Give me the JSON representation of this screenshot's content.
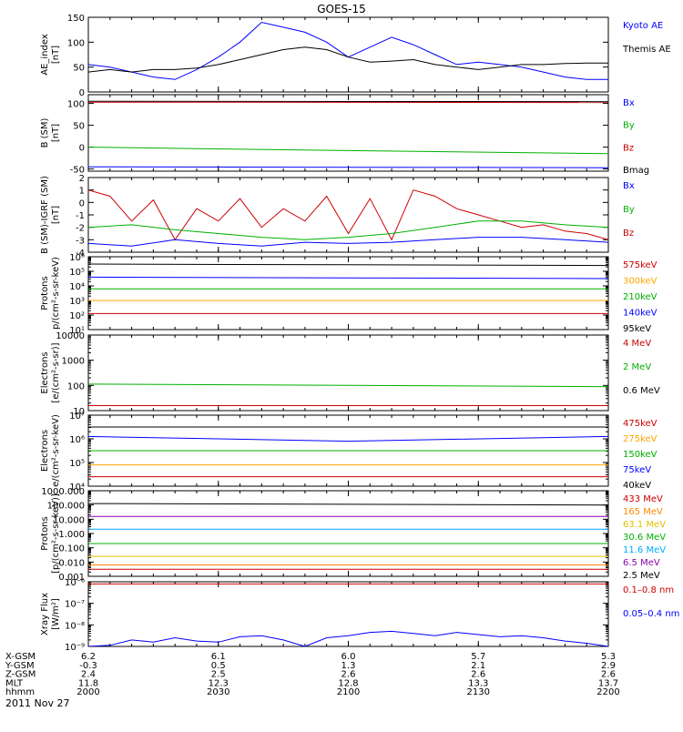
{
  "title": "GOES-15",
  "date": "2011 Nov 27",
  "x_axis": {
    "row_labels": [
      "X-GSM",
      "Y-GSM",
      "Z-GSM",
      "MLT",
      "hhmm"
    ],
    "columns": [
      {
        "time": 2000,
        "values": [
          "6.2",
          "-0.3",
          "2.4",
          "11.8",
          "2000"
        ]
      },
      {
        "time": 2030,
        "values": [
          "6.1",
          "0.5",
          "2.5",
          "12.3",
          "2030"
        ]
      },
      {
        "time": 2100,
        "values": [
          "6.0",
          "1.3",
          "2.6",
          "12.8",
          "2100"
        ]
      },
      {
        "time": 2130,
        "values": [
          "5.7",
          "2.1",
          "2.6",
          "13.3",
          "2130"
        ]
      },
      {
        "time": 2200,
        "values": [
          "5.3",
          "2.9",
          "2.6",
          "13.7",
          "2200"
        ]
      }
    ]
  },
  "chart_data": [
    {
      "type": "line",
      "ylabel": [
        "AE_index",
        "[nT]"
      ],
      "yscale": "linear",
      "ylim": [
        0,
        150
      ],
      "ticks": [
        {
          "v": 0,
          "l": "0"
        },
        {
          "v": 50,
          "l": "50"
        },
        {
          "v": 100,
          "l": "100"
        },
        {
          "v": 150,
          "l": "150"
        }
      ],
      "legend": [
        {
          "label": "Kyoto AE",
          "color": "#0000ff"
        },
        {
          "label": "Themis AE",
          "color": "#000000"
        }
      ],
      "series": [
        {
          "name": "Kyoto AE",
          "color": "#0000ff",
          "x": [
            2000,
            2005,
            2010,
            2015,
            2020,
            2025,
            2030,
            2035,
            2040,
            2045,
            2050,
            2055,
            2100,
            2105,
            2110,
            2115,
            2120,
            2125,
            2130,
            2135,
            2140,
            2145,
            2150,
            2155,
            2200
          ],
          "y": [
            55,
            50,
            40,
            30,
            25,
            45,
            70,
            100,
            140,
            130,
            120,
            100,
            70,
            90,
            110,
            95,
            75,
            55,
            60,
            55,
            50,
            40,
            30,
            25,
            25
          ]
        },
        {
          "name": "Themis AE",
          "color": "#000000",
          "x": [
            2000,
            2005,
            2010,
            2015,
            2020,
            2025,
            2030,
            2035,
            2040,
            2045,
            2050,
            2055,
            2100,
            2105,
            2110,
            2115,
            2120,
            2125,
            2130,
            2135,
            2140,
            2145,
            2150,
            2155,
            2200
          ],
          "y": [
            40,
            45,
            40,
            45,
            45,
            48,
            55,
            65,
            75,
            85,
            90,
            85,
            70,
            60,
            62,
            65,
            55,
            50,
            45,
            50,
            55,
            55,
            57,
            58,
            58
          ]
        }
      ]
    },
    {
      "type": "line",
      "ylabel": [
        "B (SM)",
        "[nT]"
      ],
      "yscale": "linear",
      "ylim": [
        -55,
        120
      ],
      "ticks": [
        {
          "v": -50,
          "l": "-50"
        },
        {
          "v": 0,
          "l": "0"
        },
        {
          "v": 50,
          "l": "50"
        },
        {
          "v": 100,
          "l": "100"
        }
      ],
      "legend": [
        {
          "label": "Bx",
          "color": "#0000ff"
        },
        {
          "label": "By",
          "color": "#00b000"
        },
        {
          "label": "Bz",
          "color": "#cc0000"
        },
        {
          "label": "Bmag",
          "color": "#000000"
        }
      ],
      "series": [
        {
          "name": "Bmag",
          "color": "#000000",
          "x": [
            2000,
            2200
          ],
          "y": [
            105,
            104
          ]
        },
        {
          "name": "Bz",
          "color": "#cc0000",
          "x": [
            2000,
            2200
          ],
          "y": [
            103,
            102
          ]
        },
        {
          "name": "By",
          "color": "#00b000",
          "x": [
            2000,
            2100,
            2200
          ],
          "y": [
            0,
            -8,
            -15
          ]
        },
        {
          "name": "Bx",
          "color": "#0000ff",
          "x": [
            2000,
            2200
          ],
          "y": [
            -45,
            -47
          ]
        }
      ]
    },
    {
      "type": "line",
      "ylabel": [
        "B (SM)-IGRF (SM)",
        "[nT]"
      ],
      "yscale": "linear",
      "ylim": [
        -4,
        2
      ],
      "ticks": [
        {
          "v": -4,
          "l": "-4"
        },
        {
          "v": -3,
          "l": "-3"
        },
        {
          "v": -2,
          "l": "-2"
        },
        {
          "v": -1,
          "l": "-1"
        },
        {
          "v": 0,
          "l": "0"
        },
        {
          "v": 1,
          "l": "1"
        },
        {
          "v": 2,
          "l": "2"
        }
      ],
      "legend": [
        {
          "label": "Bx",
          "color": "#0000ff"
        },
        {
          "label": "By",
          "color": "#00b000"
        },
        {
          "label": "Bz",
          "color": "#cc0000"
        }
      ],
      "series": [
        {
          "name": "Bz",
          "color": "#cc0000",
          "x": [
            2000,
            2005,
            2010,
            2015,
            2020,
            2025,
            2030,
            2035,
            2040,
            2045,
            2050,
            2055,
            2100,
            2105,
            2110,
            2115,
            2120,
            2125,
            2130,
            2135,
            2140,
            2145,
            2150,
            2155,
            2200
          ],
          "y": [
            1,
            0.5,
            -1.5,
            0.2,
            -3,
            -0.5,
            -1.5,
            0.3,
            -2,
            -0.5,
            -1.5,
            0.5,
            -2.5,
            0.3,
            -3,
            1,
            0.5,
            -0.5,
            -1,
            -1.5,
            -2,
            -1.8,
            -2.3,
            -2.5,
            -3
          ]
        },
        {
          "name": "By",
          "color": "#00b000",
          "x": [
            2000,
            2010,
            2020,
            2030,
            2040,
            2050,
            2100,
            2110,
            2120,
            2130,
            2140,
            2150,
            2200
          ],
          "y": [
            -2,
            -1.8,
            -2.2,
            -2.5,
            -2.8,
            -3,
            -2.8,
            -2.5,
            -2,
            -1.5,
            -1.5,
            -1.8,
            -2
          ]
        },
        {
          "name": "Bx",
          "color": "#0000ff",
          "x": [
            2000,
            2010,
            2020,
            2030,
            2040,
            2050,
            2100,
            2110,
            2120,
            2130,
            2140,
            2150,
            2200
          ],
          "y": [
            -3.3,
            -3.5,
            -3,
            -3.3,
            -3.5,
            -3.2,
            -3.3,
            -3.2,
            -3,
            -2.8,
            -2.8,
            -3,
            -3.2
          ]
        }
      ]
    },
    {
      "type": "line",
      "ylabel": [
        "Protons",
        "p/(cm²-s-sr-keV)"
      ],
      "yscale": "log",
      "ylim": [
        1,
        6
      ],
      "ticks": [
        {
          "v": 1,
          "l": "10¹"
        },
        {
          "v": 2,
          "l": "10²"
        },
        {
          "v": 3,
          "l": "10³"
        },
        {
          "v": 4,
          "l": "10⁴"
        },
        {
          "v": 5,
          "l": "10⁵"
        },
        {
          "v": 6,
          "l": "10⁶"
        }
      ],
      "legend": [
        {
          "label": "575keV",
          "color": "#cc0000"
        },
        {
          "label": "300keV",
          "color": "#ffa500"
        },
        {
          "label": "210keV",
          "color": "#00b000"
        },
        {
          "label": "140keV",
          "color": "#0000ff"
        },
        {
          "label": "95keV",
          "color": "#000000"
        }
      ],
      "series": [
        {
          "name": "95keV",
          "color": "#000000",
          "x": [
            2000,
            2200
          ],
          "y": [
            5.5,
            5.4
          ]
        },
        {
          "name": "140keV",
          "color": "#0000ff",
          "x": [
            2000,
            2200
          ],
          "y": [
            4.6,
            4.5
          ]
        },
        {
          "name": "210keV",
          "color": "#00b000",
          "x": [
            2000,
            2200
          ],
          "y": [
            3.8,
            3.8
          ]
        },
        {
          "name": "300keV",
          "color": "#ffa500",
          "x": [
            2000,
            2200
          ],
          "y": [
            3,
            3
          ]
        },
        {
          "name": "575keV",
          "color": "#cc0000",
          "x": [
            2000,
            2200
          ],
          "y": [
            2.1,
            2.1
          ]
        }
      ]
    },
    {
      "type": "line",
      "ylabel": [
        "Electrons",
        "[e/(cm²-s-sr)]"
      ],
      "yscale": "log",
      "ylim": [
        1,
        4
      ],
      "ticks": [
        {
          "v": 1,
          "l": "10"
        },
        {
          "v": 2,
          "l": "100"
        },
        {
          "v": 3,
          "l": "1000"
        },
        {
          "v": 4,
          "l": "10000"
        }
      ],
      "legend": [
        {
          "label": "4 MeV",
          "color": "#cc0000"
        },
        {
          "label": "2 MeV",
          "color": "#00b000"
        },
        {
          "label": "0.6 MeV",
          "color": "#000000"
        }
      ],
      "series": [
        {
          "name": "0.6 MeV",
          "color": "#000000",
          "x": [
            2000,
            2200
          ],
          "y": [
            4,
            4
          ]
        },
        {
          "name": "2 MeV",
          "color": "#00b000",
          "x": [
            2000,
            2200
          ],
          "y": [
            2.05,
            1.95
          ]
        },
        {
          "name": "4 MeV",
          "color": "#cc0000",
          "x": [
            2000,
            2200
          ],
          "y": [
            1.2,
            1.2
          ]
        }
      ]
    },
    {
      "type": "line",
      "ylabel": [
        "Electrons",
        "e/(cm²-s-sr-keV)"
      ],
      "yscale": "log",
      "ylim": [
        4,
        7
      ],
      "ticks": [
        {
          "v": 4,
          "l": "10⁴"
        },
        {
          "v": 5,
          "l": "10⁵"
        },
        {
          "v": 6,
          "l": "10⁶"
        },
        {
          "v": 7,
          "l": "10⁷"
        }
      ],
      "legend": [
        {
          "label": "475keV",
          "color": "#cc0000"
        },
        {
          "label": "275keV",
          "color": "#ffa500"
        },
        {
          "label": "150keV",
          "color": "#00b000"
        },
        {
          "label": "75keV",
          "color": "#0000ff"
        },
        {
          "label": "40keV",
          "color": "#000000"
        }
      ],
      "series": [
        {
          "name": "40keV",
          "color": "#000000",
          "x": [
            2000,
            2200
          ],
          "y": [
            6.5,
            6.5
          ]
        },
        {
          "name": "75keV",
          "color": "#0000ff",
          "x": [
            2000,
            2100,
            2200
          ],
          "y": [
            6.1,
            5.9,
            6.1
          ]
        },
        {
          "name": "150keV",
          "color": "#00b000",
          "x": [
            2000,
            2200
          ],
          "y": [
            5.5,
            5.5
          ]
        },
        {
          "name": "275keV",
          "color": "#ffa500",
          "x": [
            2000,
            2200
          ],
          "y": [
            4.9,
            4.9
          ]
        },
        {
          "name": "475keV",
          "color": "#cc0000",
          "x": [
            2000,
            2200
          ],
          "y": [
            4.4,
            4.4
          ]
        }
      ]
    },
    {
      "type": "line",
      "ylabel": [
        "Protons",
        "[p/(cm²-s-sr-keV)]"
      ],
      "yscale": "log",
      "ylim": [
        -3,
        3
      ],
      "ticks": [
        {
          "v": -3,
          "l": "0.001"
        },
        {
          "v": -2,
          "l": "0.010"
        },
        {
          "v": -1,
          "l": "0.100"
        },
        {
          "v": 0,
          "l": "1.000"
        },
        {
          "v": 1,
          "l": "10.000"
        },
        {
          "v": 2,
          "l": "100.000"
        },
        {
          "v": 3,
          "l": "1000.000"
        }
      ],
      "legend": [
        {
          "label": "433 MeV",
          "color": "#cc0000"
        },
        {
          "label": "165 MeV",
          "color": "#ff8800"
        },
        {
          "label": "63.1 MeV",
          "color": "#e0c000"
        },
        {
          "label": "30.6 MeV",
          "color": "#00b000"
        },
        {
          "label": "11.6 MeV",
          "color": "#00aaff"
        },
        {
          "label": "6.5 MeV",
          "color": "#8800aa"
        },
        {
          "label": "2.5 MeV",
          "color": "#000000"
        }
      ],
      "series": [
        {
          "name": "2.5 MeV",
          "color": "#000000",
          "x": [
            2000,
            2200
          ],
          "y": [
            2.1,
            2.0
          ]
        },
        {
          "name": "6.5 MeV",
          "color": "#8800aa",
          "x": [
            2000,
            2200
          ],
          "y": [
            1.2,
            1.2
          ]
        },
        {
          "name": "11.6 MeV",
          "color": "#00aaff",
          "x": [
            2000,
            2200
          ],
          "y": [
            0.3,
            0.3
          ]
        },
        {
          "name": "30.6 MeV",
          "color": "#00b000",
          "x": [
            2000,
            2200
          ],
          "y": [
            -0.7,
            -0.7
          ]
        },
        {
          "name": "63.1 MeV",
          "color": "#e0c000",
          "x": [
            2000,
            2200
          ],
          "y": [
            -1.6,
            -1.6
          ]
        },
        {
          "name": "165 MeV",
          "color": "#ff8800",
          "x": [
            2000,
            2200
          ],
          "y": [
            -2.2,
            -2.2
          ]
        },
        {
          "name": "433 MeV",
          "color": "#cc0000",
          "x": [
            2000,
            2200
          ],
          "y": [
            -2.5,
            -2.5
          ]
        }
      ]
    },
    {
      "type": "line",
      "ylabel": [
        "Xray Flux",
        "[W/m²]"
      ],
      "yscale": "log",
      "ylim": [
        -9,
        -6
      ],
      "ticks": [
        {
          "v": -9,
          "l": "10⁻⁹"
        },
        {
          "v": -8,
          "l": "10⁻⁸"
        },
        {
          "v": -7,
          "l": "10⁻⁷"
        },
        {
          "v": -6,
          "l": "10⁻⁶"
        }
      ],
      "legend": [
        {
          "label": "0.1–0.8 nm",
          "color": "#cc0000"
        },
        {
          "label": "0.05–0.4 nm",
          "color": "#0000ff"
        }
      ],
      "series": [
        {
          "name": "0.1–0.8 nm",
          "color": "#cc0000",
          "x": [
            2000,
            2200
          ],
          "y": [
            -6.1,
            -6.1
          ]
        },
        {
          "name": "0.05–0.4 nm",
          "color": "#0000ff",
          "x": [
            2000,
            2005,
            2010,
            2015,
            2020,
            2025,
            2030,
            2035,
            2040,
            2045,
            2050,
            2055,
            2100,
            2105,
            2110,
            2115,
            2120,
            2125,
            2130,
            2135,
            2140,
            2145,
            2150,
            2155,
            2200
          ],
          "y": [
            -9,
            -8.95,
            -8.7,
            -8.8,
            -8.6,
            -8.75,
            -8.8,
            -8.55,
            -8.5,
            -8.7,
            -9,
            -8.6,
            -8.5,
            -8.35,
            -8.3,
            -8.4,
            -8.5,
            -8.35,
            -8.45,
            -8.55,
            -8.5,
            -8.6,
            -8.75,
            -8.85,
            -9
          ]
        }
      ]
    }
  ]
}
